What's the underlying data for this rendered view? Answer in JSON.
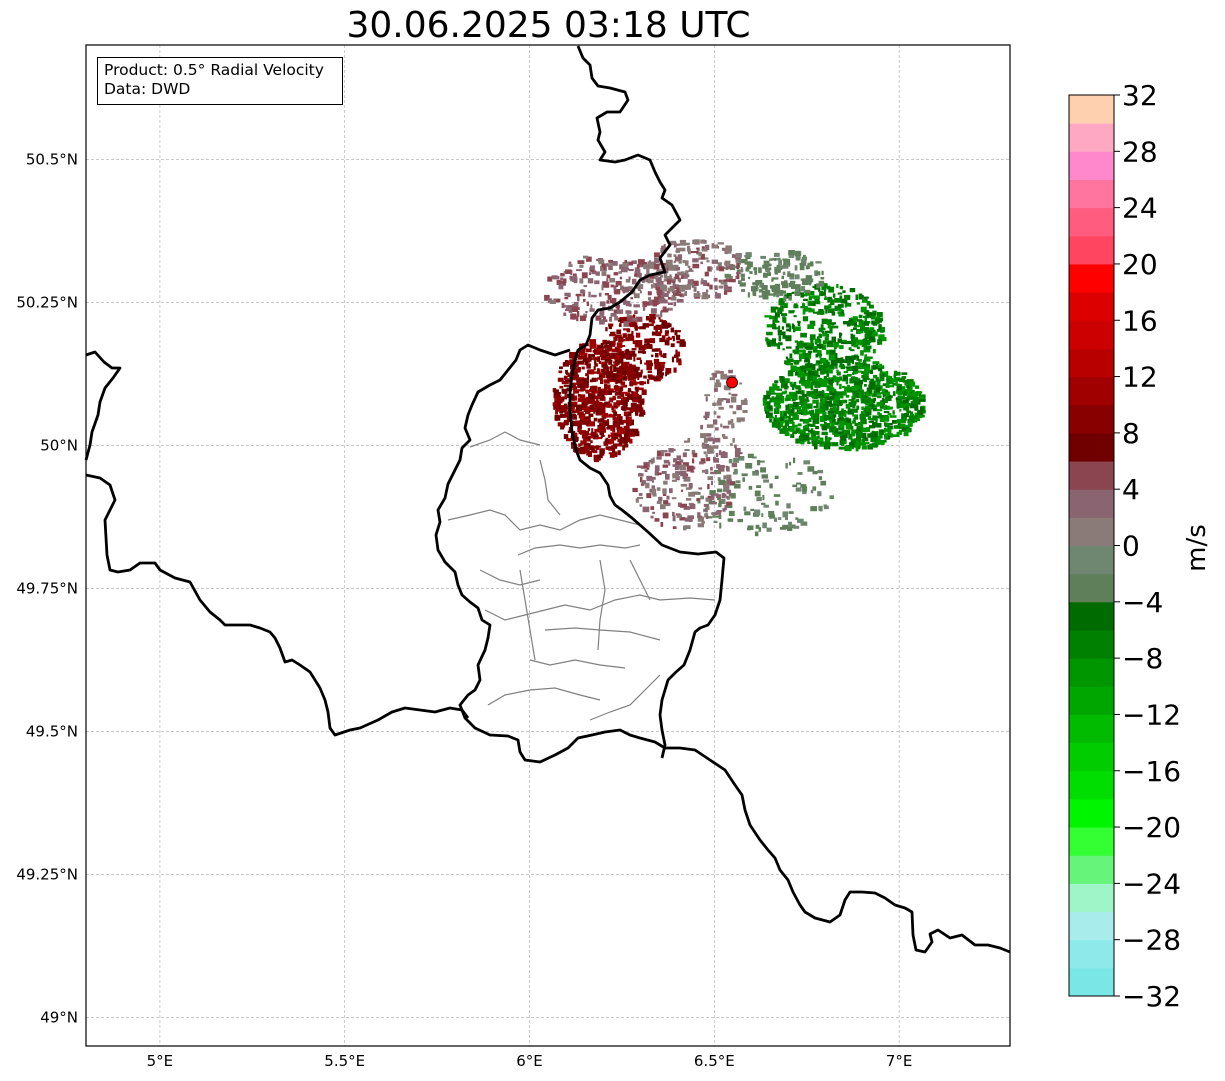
{
  "title": "30.06.2025 03:18 UTC",
  "info": {
    "product": "Product: 0.5° Radial Velocity",
    "data_source": "Data: DWD"
  },
  "map": {
    "lon_range": [
      4.8,
      7.3
    ],
    "lat_range": [
      48.95,
      50.7
    ],
    "lon_ticks": [
      {
        "value": 5.0,
        "label": "5°E"
      },
      {
        "value": 5.5,
        "label": "5.5°E"
      },
      {
        "value": 6.0,
        "label": "6°E"
      },
      {
        "value": 6.5,
        "label": "6.5°E"
      },
      {
        "value": 7.0,
        "label": "7°E"
      }
    ],
    "lat_ticks": [
      {
        "value": 49.0,
        "label": "49°N"
      },
      {
        "value": 49.25,
        "label": "49.25°N"
      },
      {
        "value": 49.5,
        "label": "49.5°N"
      },
      {
        "value": 49.75,
        "label": "49.75°N"
      },
      {
        "value": 50.0,
        "label": "50°N"
      },
      {
        "value": 50.25,
        "label": "50.25°N"
      },
      {
        "value": 50.5,
        "label": "50.5°N"
      }
    ],
    "grid": true,
    "radar_site": {
      "lon": 6.548,
      "lat": 50.11,
      "color": "#ff0000"
    }
  },
  "colorbar": {
    "label": "m/s",
    "min": -32,
    "max": 32,
    "ticks": [
      {
        "value": 32,
        "label": "32"
      },
      {
        "value": 28,
        "label": "28"
      },
      {
        "value": 24,
        "label": "24"
      },
      {
        "value": 20,
        "label": "20"
      },
      {
        "value": 16,
        "label": "16"
      },
      {
        "value": 12,
        "label": "12"
      },
      {
        "value": 8,
        "label": "8"
      },
      {
        "value": 4,
        "label": "4"
      },
      {
        "value": 0,
        "label": "0"
      },
      {
        "value": -4,
        "label": "−4"
      },
      {
        "value": -8,
        "label": "−8"
      },
      {
        "value": -12,
        "label": "−12"
      },
      {
        "value": -16,
        "label": "−16"
      },
      {
        "value": -20,
        "label": "−20"
      },
      {
        "value": -24,
        "label": "−24"
      },
      {
        "value": -28,
        "label": "−28"
      },
      {
        "value": -32,
        "label": "−32"
      }
    ],
    "bands": [
      {
        "from": -32,
        "to": -30,
        "color": "#7ae6e6"
      },
      {
        "from": -30,
        "to": -28,
        "color": "#8eeaea"
      },
      {
        "from": -28,
        "to": -26,
        "color": "#a9ecec"
      },
      {
        "from": -26,
        "to": -24,
        "color": "#9ff5c8"
      },
      {
        "from": -24,
        "to": -22,
        "color": "#66f57a"
      },
      {
        "from": -22,
        "to": -20,
        "color": "#33ff33"
      },
      {
        "from": -20,
        "to": -18,
        "color": "#00f500"
      },
      {
        "from": -18,
        "to": -16,
        "color": "#00dd00"
      },
      {
        "from": -16,
        "to": -14,
        "color": "#00cc00"
      },
      {
        "from": -14,
        "to": -12,
        "color": "#00bb00"
      },
      {
        "from": -12,
        "to": -10,
        "color": "#00a600"
      },
      {
        "from": -10,
        "to": -8,
        "color": "#009600"
      },
      {
        "from": -8,
        "to": -6,
        "color": "#008000"
      },
      {
        "from": -6,
        "to": -4,
        "color": "#006b00"
      },
      {
        "from": -4,
        "to": -2,
        "color": "#5f7f5a"
      },
      {
        "from": -2,
        "to": 0,
        "color": "#6f8670"
      },
      {
        "from": 0,
        "to": 2,
        "color": "#8a7a78"
      },
      {
        "from": 2,
        "to": 4,
        "color": "#8a6470"
      },
      {
        "from": 4,
        "to": 6,
        "color": "#8a4550"
      },
      {
        "from": 6,
        "to": 8,
        "color": "#700000"
      },
      {
        "from": 8,
        "to": 10,
        "color": "#880000"
      },
      {
        "from": 10,
        "to": 12,
        "color": "#a00000"
      },
      {
        "from": 12,
        "to": 14,
        "color": "#b80000"
      },
      {
        "from": 14,
        "to": 16,
        "color": "#cc0000"
      },
      {
        "from": 16,
        "to": 18,
        "color": "#dd0000"
      },
      {
        "from": 18,
        "to": 20,
        "color": "#ff0000"
      },
      {
        "from": 20,
        "to": 22,
        "color": "#ff4560"
      },
      {
        "from": 22,
        "to": 24,
        "color": "#ff5c80"
      },
      {
        "from": 24,
        "to": 26,
        "color": "#ff75a0"
      },
      {
        "from": 26,
        "to": 28,
        "color": "#ff88cc"
      },
      {
        "from": 28,
        "to": 30,
        "color": "#ffa8c4"
      },
      {
        "from": 30,
        "to": 32,
        "color": "#ffd0b0"
      }
    ]
  }
}
